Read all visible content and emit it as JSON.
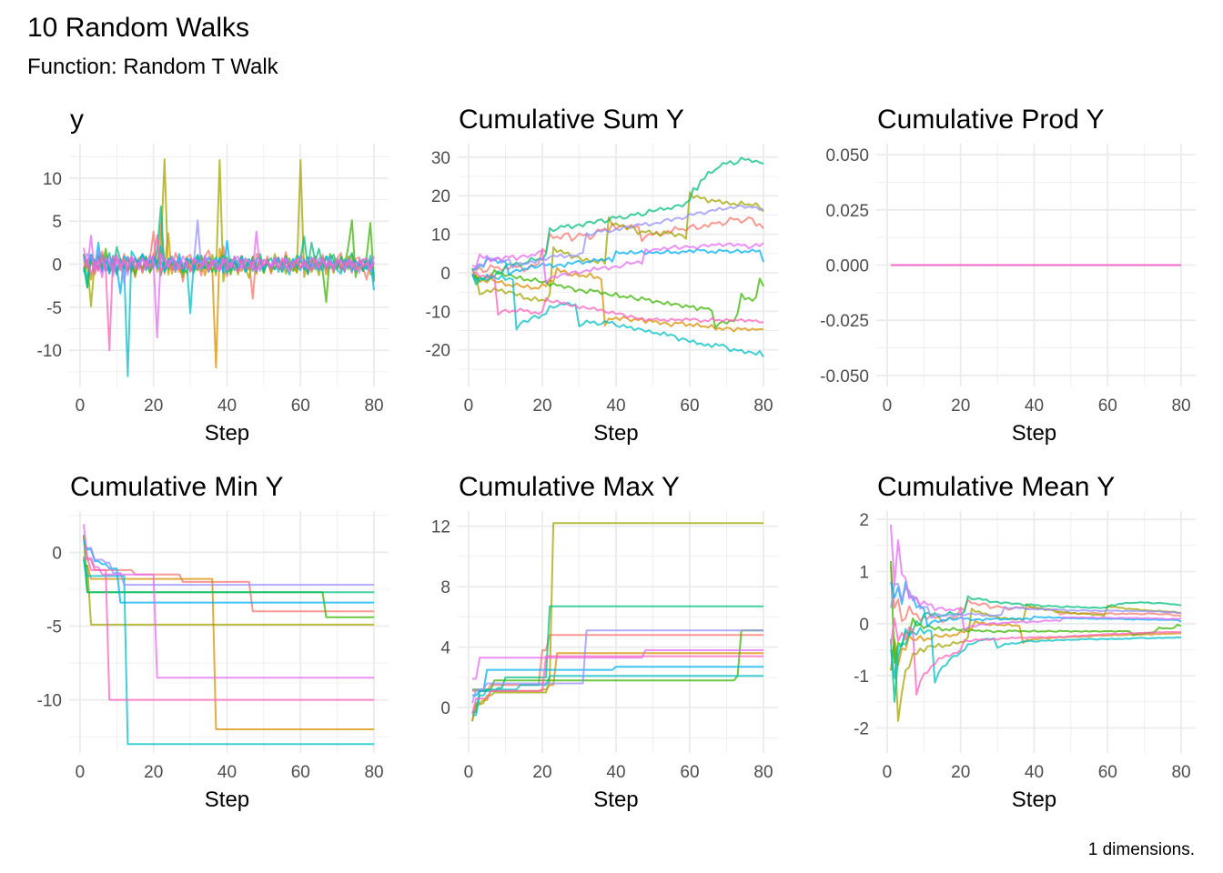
{
  "title": "10 Random Walks",
  "subtitle": "Function: Random T Walk",
  "caption": "1 dimensions.",
  "chart_data": {
    "type": "line",
    "grid": true,
    "legend": "none",
    "x": {
      "label": "Step",
      "from": 1,
      "to": 80,
      "ticks": [
        0,
        20,
        40,
        60,
        80
      ],
      "xlim": [
        -2.95,
        83.95
      ]
    },
    "panels": [
      {
        "title": "y",
        "stat": "identity",
        "ylim": [
          -14.2,
          14.0
        ],
        "yticks": [
          -10,
          -5,
          0,
          5,
          10
        ],
        "ytick_labels": [
          "-10",
          "-5",
          "0",
          "5",
          "10"
        ],
        "xlabel": "Step"
      },
      {
        "title": "Cumulative Sum Y",
        "stat": "cumsum",
        "ylim": [
          -29.5,
          33.5
        ],
        "yticks": [
          -20,
          -10,
          0,
          10,
          20,
          30
        ],
        "ytick_labels": [
          "-20",
          "-10",
          "0",
          "10",
          "20",
          "30"
        ],
        "xlabel": "Step"
      },
      {
        "title": "Cumulative Prod Y",
        "stat": "cumprod",
        "constant_value": 0,
        "ylim": [
          -0.055,
          0.055
        ],
        "yticks": [
          -0.05,
          -0.025,
          0,
          0.025,
          0.05
        ],
        "ytick_labels": [
          "-0.050",
          "-0.025",
          "0.000",
          "0.025",
          "0.050"
        ],
        "xlabel": "Step"
      },
      {
        "title": "Cumulative Min Y",
        "stat": "cummin",
        "ylim": [
          -13.6,
          2.8
        ],
        "yticks": [
          -10,
          -5,
          0
        ],
        "ytick_labels": [
          "-10",
          "-5",
          "0"
        ],
        "xlabel": "Step"
      },
      {
        "title": "Cumulative Max Y",
        "stat": "cummax",
        "ylim": [
          -3.0,
          13.0
        ],
        "yticks": [
          0,
          4,
          8,
          12
        ],
        "ytick_labels": [
          "0",
          "4",
          "8",
          "12"
        ],
        "xlabel": "Step"
      },
      {
        "title": "Cumulative Mean Y",
        "stat": "cummean",
        "ylim": [
          -2.48,
          2.16
        ],
        "yticks": [
          -2,
          -1,
          0,
          1,
          2
        ],
        "ytick_labels": [
          "-2",
          "-1",
          "0",
          "1",
          "2"
        ],
        "xlabel": "Step"
      }
    ],
    "series": [
      {
        "color": "#F8766D",
        "y": [
          1.1,
          -0.5,
          0.8,
          -1.2,
          0.3,
          1.5,
          -0.7,
          0.2,
          -1.0,
          0.9,
          -0.4,
          1.2,
          -0.8,
          0.5,
          -1.5,
          0.7,
          1.0,
          -0.3,
          0.6,
          3.8,
          -0.9,
          4.8,
          -1.1,
          0.4,
          -0.6,
          1.3,
          0.2,
          -2.0,
          0.8,
          1.1,
          -0.5,
          0.3,
          -1.3,
          0.9,
          1.6,
          -0.2,
          0.5,
          -0.8,
          2.1,
          -1.4,
          0.6,
          0.3,
          -0.9,
          1.0,
          -0.6,
          0.4,
          -4.0,
          1.2,
          0.7,
          -0.3,
          0.9,
          -1.1,
          0.5,
          0.8,
          -0.4,
          1.4,
          -0.7,
          0.2,
          -0.5,
          1.0,
          0.6,
          -1.2,
          0.3,
          0.9,
          -0.6,
          1.1,
          -0.2,
          0.4,
          -0.9,
          0.7,
          1.3,
          -0.5,
          0.2,
          -1.0,
          0.6,
          0.8,
          -0.4,
          -1.8,
          0.5,
          -1.2
        ]
      },
      {
        "color": "#D89000",
        "y": [
          -0.9,
          0.3,
          -1.8,
          0.5,
          -0.6,
          1.1,
          -0.8,
          -0.3,
          0.4,
          -1.2,
          0.2,
          -0.5,
          0.9,
          -0.7,
          -0.4,
          0.6,
          -1.0,
          0.3,
          -0.2,
          1.2,
          -0.6,
          1.5,
          -0.3,
          3.6,
          -1.1,
          0.4,
          -0.9,
          -0.5,
          0.7,
          -0.8,
          0.2,
          -0.4,
          1.0,
          -1.3,
          0.3,
          -0.6,
          -12.0,
          1.8,
          -0.2,
          0.5,
          -0.7,
          0.9,
          -0.4,
          -0.8,
          0.6,
          -0.3,
          0.4,
          -1.1,
          0.8,
          -0.5,
          0.2,
          -0.9,
          0.6,
          -0.4,
          -0.7,
          1.0,
          -0.2,
          0.3,
          -1.0,
          0.5,
          -0.6,
          0.8,
          -0.9,
          0.1,
          -0.3,
          0.7,
          -1.2,
          0.4,
          -0.5,
          0.6,
          -0.2,
          -0.8,
          0.9,
          -0.4,
          0.3,
          -0.6,
          0.5,
          -0.3,
          0.2,
          -0.1
        ]
      },
      {
        "color": "#A3A500",
        "y": [
          -0.9,
          0.2,
          -4.9,
          0.3,
          0.8,
          -0.5,
          1.0,
          -0.7,
          0.4,
          -1.1,
          0.6,
          -0.3,
          -0.8,
          0.5,
          -1.4,
          0.2,
          -0.6,
          0.9,
          -1.0,
          0.3,
          -0.4,
          1.8,
          12.2,
          -1.2,
          0.5,
          -0.9,
          0.3,
          -1.5,
          0.6,
          -0.4,
          -1.0,
          0.7,
          -0.8,
          0.2,
          -0.6,
          1.1,
          -1.3,
          12.1,
          -2.0,
          0.4,
          -0.7,
          0.3,
          -1.2,
          0.9,
          -0.5,
          -1.6,
          0.8,
          -0.3,
          0.5,
          -1.0,
          0.4,
          -0.8,
          1.2,
          -0.6,
          0.3,
          -1.1,
          0.7,
          -0.4,
          -0.9,
          12.1,
          -1.5,
          0.6,
          -0.7,
          0.2,
          -1.3,
          0.8,
          -0.5,
          0.4,
          -1.0,
          0.6,
          -0.8,
          0.3,
          -0.6,
          1.1,
          -0.9,
          0.2,
          -0.4,
          0.7,
          -1.2,
          -1.0
        ]
      },
      {
        "color": "#39B600",
        "y": [
          1.2,
          -2.7,
          0.4,
          -0.6,
          0.9,
          -0.3,
          1.8,
          -1.0,
          0.2,
          -0.8,
          0.5,
          -0.4,
          -0.7,
          0.6,
          -1.1,
          0.3,
          -0.5,
          0.8,
          -0.9,
          -0.2,
          0.4,
          -1.3,
          0.7,
          -0.6,
          0.1,
          -0.8,
          0.5,
          -0.4,
          -1.0,
          0.6,
          -0.3,
          -0.7,
          1.0,
          -0.5,
          0.2,
          -0.9,
          0.4,
          -0.6,
          -0.3,
          0.8,
          -1.2,
          0.3,
          -0.4,
          0.6,
          -0.8,
          -0.5,
          0.9,
          -0.7,
          0.2,
          -1.0,
          0.5,
          -0.3,
          -0.6,
          0.7,
          -0.9,
          0.4,
          -0.2,
          -0.8,
          0.6,
          -0.5,
          0.3,
          -1.1,
          0.8,
          -0.4,
          0.1,
          -0.7,
          -4.4,
          1.2,
          0.5,
          -0.6,
          0.9,
          -0.3,
          2.1,
          5.1,
          -1.5,
          0.4,
          -0.8,
          1.0,
          4.8,
          -2.0
        ]
      },
      {
        "color": "#00BF7D",
        "y": [
          -0.3,
          -2.7,
          1.1,
          0.4,
          -0.5,
          0.9,
          0.2,
          1.3,
          -0.6,
          2.0,
          0.5,
          -0.4,
          0.8,
          -0.9,
          0.6,
          0.3,
          1.2,
          -0.7,
          0.4,
          -0.2,
          1.5,
          6.7,
          -0.8,
          0.5,
          0.9,
          -0.3,
          0.6,
          -1.0,
          0.7,
          0.4,
          -0.6,
          1.1,
          0.2,
          -0.5,
          0.8,
          0.3,
          -0.9,
          0.6,
          1.0,
          -0.4,
          0.5,
          -0.7,
          0.3,
          0.9,
          -0.2,
          0.6,
          -0.8,
          0.4,
          1.2,
          -0.5,
          0.3,
          0.7,
          -0.6,
          0.5,
          -0.3,
          0.9,
          0.2,
          -0.4,
          1.0,
          0.6,
          3.2,
          -0.5,
          2.5,
          0.4,
          1.8,
          -0.3,
          0.9,
          0.6,
          1.1,
          -0.2,
          0.7,
          -0.9,
          0.5,
          1.3,
          -0.6,
          0.2,
          -0.8,
          0.4,
          -0.5,
          -0.3
        ]
      },
      {
        "color": "#00BFC4",
        "y": [
          -0.5,
          -1.6,
          0.8,
          -0.4,
          1.2,
          -0.9,
          0.3,
          -0.6,
          1.0,
          -1.2,
          0.5,
          -0.3,
          -13.0,
          1.5,
          0.8,
          -0.4,
          1.1,
          0.6,
          -0.7,
          0.9,
          0.2,
          2.1,
          -0.5,
          0.4,
          0.7,
          -0.3,
          0.6,
          -0.8,
          0.3,
          -5.7,
          0.5,
          1.0,
          -0.6,
          0.4,
          -0.9,
          0.2,
          0.8,
          -0.5,
          0.3,
          -1.0,
          -0.4,
          0.6,
          -0.7,
          0.2,
          -0.9,
          0.5,
          -0.3,
          -0.6,
          0.4,
          -0.8,
          0.1,
          -0.5,
          0.7,
          -0.9,
          0.3,
          -0.4,
          -1.2,
          0.6,
          -0.3,
          -0.7,
          0.5,
          -1.0,
          0.2,
          -0.6,
          0.4,
          -0.8,
          0.9,
          -0.5,
          0.3,
          -0.7,
          -1.1,
          0.6,
          -0.4,
          0.2,
          -0.9,
          0.5,
          -0.3,
          -0.6,
          1.0,
          -1.5
        ]
      },
      {
        "color": "#00B0F6",
        "y": [
          0.8,
          0.2,
          1.1,
          -0.6,
          2.5,
          -0.8,
          0.4,
          -1.1,
          0.6,
          -0.3,
          -3.4,
          0.9,
          0.5,
          -0.4,
          0.7,
          -0.2,
          1.0,
          -0.6,
          0.3,
          0.8,
          -0.5,
          0.4,
          -0.9,
          0.6,
          0.2,
          -0.7,
          1.2,
          -0.4,
          0.5,
          0.3,
          -0.8,
          0.6,
          -0.2,
          0.9,
          -0.5,
          0.4,
          -0.3,
          0.7,
          -1.0,
          2.7,
          -0.6,
          0.3,
          -0.4,
          0.8,
          -0.7,
          0.2,
          0.5,
          -0.9,
          0.6,
          -0.3,
          0.4,
          -0.5,
          0.2,
          0.7,
          -0.8,
          0.3,
          -0.4,
          0.6,
          -0.2,
          0.5,
          -0.6,
          0.8,
          -0.3,
          0.1,
          -0.7,
          0.4,
          -0.5,
          0.9,
          -0.4,
          0.2,
          -0.6,
          0.3,
          0.5,
          -0.8,
          0.4,
          -0.2,
          0.6,
          -0.5,
          0.3,
          -3.0
        ]
      },
      {
        "color": "#9590FF",
        "y": [
          0.3,
          1.2,
          0.8,
          -0.5,
          1.6,
          0.4,
          -0.7,
          0.9,
          -1.4,
          0.6,
          0.3,
          -2.2,
          0.8,
          0.5,
          -0.4,
          0.2,
          0.7,
          -0.6,
          1.0,
          0.3,
          -0.5,
          0.8,
          0.4,
          -0.3,
          0.6,
          -0.9,
          0.5,
          0.2,
          -0.4,
          0.7,
          0.3,
          5.1,
          -0.6,
          0.4,
          0.8,
          -0.2,
          0.5,
          -0.7,
          0.3,
          0.6,
          -0.4,
          0.9,
          0.2,
          -0.5,
          0.7,
          0.4,
          -0.3,
          0.6,
          -0.8,
          0.5,
          0.3,
          -0.2,
          0.8,
          0.4,
          -0.6,
          0.7,
          0.2,
          -0.4,
          0.5,
          0.9,
          -0.3,
          0.6,
          0.1,
          -0.5,
          0.7,
          0.4,
          -0.2,
          0.8,
          -0.6,
          0.3,
          0.5,
          -0.4,
          0.6,
          0.2,
          -0.7,
          0.4,
          -0.3,
          0.2,
          -0.8,
          0.3
        ]
      },
      {
        "color": "#E76BF3",
        "y": [
          1.9,
          -0.4,
          3.3,
          -1.0,
          0.6,
          -1.5,
          0.8,
          0.2,
          -0.7,
          1.1,
          -0.3,
          0.5,
          -1.2,
          0.9,
          0.4,
          -0.6,
          0.7,
          -0.2,
          1.0,
          0.3,
          -8.5,
          1.2,
          0.6,
          -0.4,
          0.8,
          0.3,
          -0.5,
          0.9,
          0.2,
          -0.7,
          0.6,
          0.4,
          -0.3,
          1.0,
          -0.6,
          0.5,
          0.3,
          -0.8,
          0.7,
          0.2,
          -0.4,
          0.6,
          0.9,
          -0.5,
          0.3,
          0.4,
          -0.7,
          3.8,
          -0.6,
          0.5,
          0.2,
          -0.3,
          0.7,
          -0.5,
          0.4,
          0.6,
          -0.9,
          0.3,
          0.5,
          -0.4,
          0.2,
          -0.6,
          0.8,
          0.3,
          -0.5,
          0.6,
          -0.2,
          0.4,
          -0.7,
          0.5,
          0.3,
          -0.8,
          0.6,
          -0.4,
          0.2,
          -1.0,
          0.5,
          0.7,
          -0.6,
          0.9
        ]
      },
      {
        "color": "#FF62BC",
        "y": [
          -0.4,
          0.6,
          -1.2,
          0.3,
          -0.8,
          1.1,
          -0.5,
          -10.0,
          0.9,
          0.4,
          -0.7,
          0.5,
          -0.3,
          0.8,
          -0.6,
          0.2,
          -0.9,
          0.4,
          -0.5,
          0.7,
          3.4,
          -0.8,
          -0.3,
          0.5,
          -0.7,
          0.2,
          -0.6,
          -0.4,
          0.3,
          -0.9,
          0.6,
          -0.5,
          -0.2,
          0.4,
          -0.8,
          0.3,
          -0.6,
          -0.4,
          0.5,
          -0.7,
          0.2,
          -0.3,
          -0.9,
          0.6,
          -0.5,
          -0.4,
          0.3,
          -0.8,
          0.5,
          -0.2,
          0.4,
          -0.6,
          0.3,
          -0.5,
          0.7,
          -0.4,
          0.2,
          -0.3,
          0.6,
          -0.5,
          0.4,
          -0.2,
          -0.7,
          0.5,
          -0.3,
          0.8,
          -0.6,
          0.2,
          -0.4,
          0.6,
          -0.5,
          0.3,
          -0.2,
          0.4,
          -0.7,
          0.5,
          -0.3,
          0.2,
          -0.6,
          0.1
        ]
      }
    ]
  }
}
